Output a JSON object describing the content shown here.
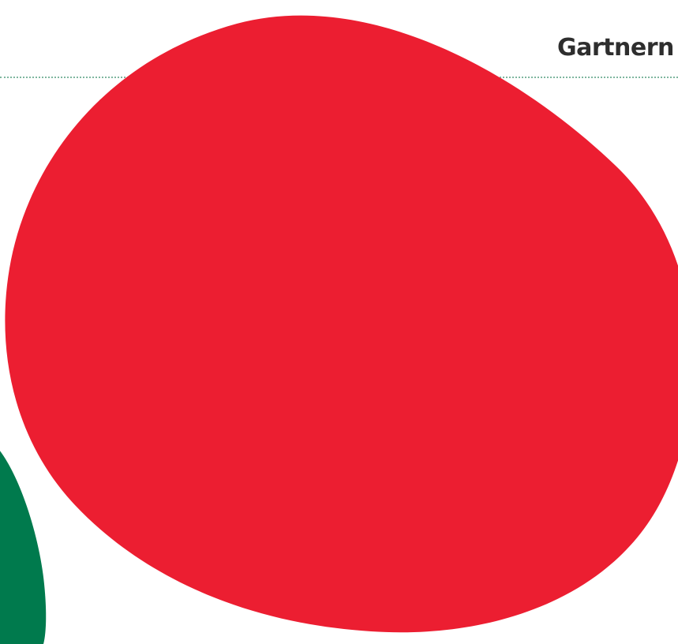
{
  "header": {
    "title": "Gartnern"
  },
  "colors": {
    "background": "#ffffff",
    "header_text": "#2e2e2e",
    "rule": "#7fb7a0",
    "blob_red": "#ec1e31",
    "blob_green": "#007a4d"
  },
  "shapes": {
    "primary": "red-blob",
    "secondary": "green-blob"
  }
}
